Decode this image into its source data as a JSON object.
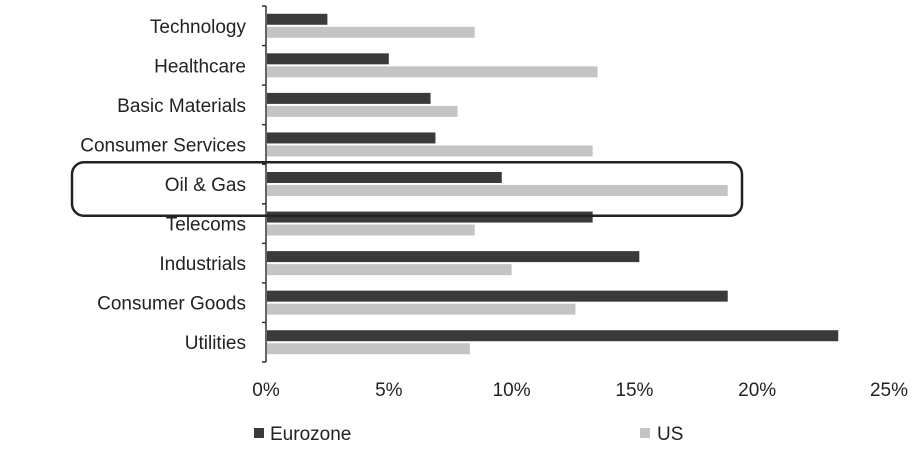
{
  "chart_data": {
    "type": "bar",
    "orientation": "horizontal",
    "categories": [
      "Technology",
      "Healthcare",
      "Basic Materials",
      "Consumer Services",
      "Oil & Gas",
      "Telecoms",
      "Industrials",
      "Consumer Goods",
      "Utilities"
    ],
    "series": [
      {
        "name": "Eurozone",
        "color": "#3a3a3a",
        "values": [
          2.5,
          5.0,
          6.7,
          6.9,
          9.6,
          13.3,
          15.2,
          18.8,
          23.3
        ]
      },
      {
        "name": "US",
        "color": "#c4c4c4",
        "values": [
          8.5,
          13.5,
          7.8,
          13.3,
          18.8,
          8.5,
          10.0,
          12.6,
          8.3
        ]
      }
    ],
    "x_ticks": [
      "0%",
      "5%",
      "10%",
      "15%",
      "20%",
      "25%"
    ],
    "xlim": [
      0,
      25
    ],
    "highlighted_category": "Oil & Gas",
    "legend_position": "bottom",
    "grid": false
  }
}
